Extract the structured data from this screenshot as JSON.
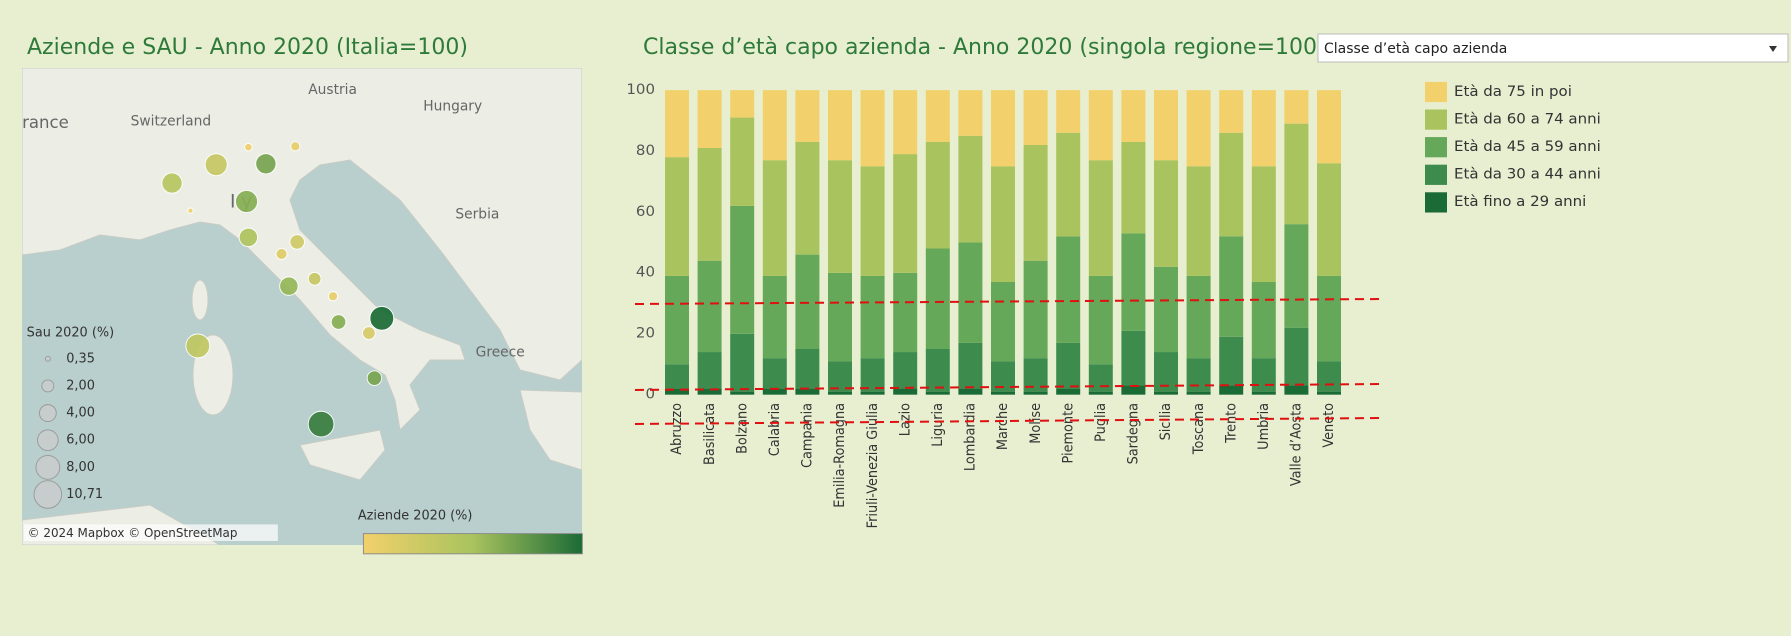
{
  "dropdown": "Classe d’età capo azienda",
  "chart_data": [
    {
      "type": "map",
      "title": "Aziende e SAU - Anno 2020 (Italia=100)",
      "place_labels": [
        "rance",
        "Switzerland",
        "Austria",
        "Hungary",
        "I   y",
        "Serbia",
        "Greece"
      ],
      "attribution": "© 2024 Mapbox © OpenStreetMap",
      "size_legend": {
        "title": "Sau 2020 (%)",
        "values": [
          {
            "value": 0.35,
            "label": "0,35"
          },
          {
            "value": 2,
            "label": "2,00"
          },
          {
            "value": 4,
            "label": "4,00"
          },
          {
            "value": 6,
            "label": "6,00"
          },
          {
            "value": 8,
            "label": "8,00"
          },
          {
            "value": 10.71,
            "label": "10,71"
          }
        ]
      },
      "color_legend": {
        "title": "Aziende 2020 (%)",
        "colors": [
          "#f2d06b",
          "#a9c35e",
          "#1b6b36"
        ]
      },
      "points": {
        "sau": [
          5.8,
          6.9,
          0.8,
          5.8,
          1.2,
          0.4,
          6.9,
          4.8,
          3.0,
          1.7,
          4.8,
          2.3,
          1.2,
          3.0,
          8.0,
          2.3,
          3.0,
          9.3,
          8.0
        ],
        "aziende": [
          4.5,
          3.5,
          1.0,
          7.0,
          1.5,
          0.8,
          6.5,
          5.0,
          3.0,
          2.0,
          6.0,
          3.5,
          1.5,
          6.5,
          10.0,
          2.5,
          7.0,
          9.0,
          4.0
        ]
      }
    },
    {
      "type": "bar",
      "stacked": true,
      "title": "Classe d’età capo azienda - Anno 2020 (singola regione=100)",
      "categories": [
        "Abruzzo",
        "Basilicata",
        "Bolzano",
        "Calabria",
        "Campania",
        "Emilia-Romagna",
        "Friuli-Venezia Giulia",
        "Lazio",
        "Liguria",
        "Lombardia",
        "Marche",
        "Molise",
        "Piemonte",
        "Puglia",
        "Sardegna",
        "Sicilia",
        "Toscana",
        "Trento",
        "Umbria",
        "Valle d’Aosta",
        "Veneto"
      ],
      "series": [
        {
          "name": "Età fino a 29 anni",
          "color": "#1b6b36",
          "values": [
            2,
            2,
            1,
            2,
            2,
            1,
            1,
            2,
            1,
            2,
            1,
            1,
            2,
            1,
            3,
            1,
            1,
            3,
            1,
            3,
            1
          ]
        },
        {
          "name": "Età da 30 a 44 anni",
          "color": "#3d8c4e",
          "values": [
            8,
            12,
            19,
            10,
            13,
            10,
            11,
            12,
            14,
            15,
            10,
            11,
            15,
            9,
            18,
            13,
            11,
            16,
            11,
            19,
            10
          ]
        },
        {
          "name": "Età da 45 a 59 anni",
          "color": "#66a85a",
          "values": [
            29,
            30,
            42,
            27,
            31,
            29,
            27,
            26,
            33,
            33,
            26,
            32,
            35,
            29,
            32,
            28,
            27,
            33,
            25,
            34,
            28
          ]
        },
        {
          "name": "Età da 60 a 74 anni",
          "color": "#a9c35e",
          "values": [
            39,
            37,
            29,
            38,
            37,
            37,
            36,
            39,
            35,
            35,
            38,
            38,
            34,
            38,
            30,
            35,
            36,
            34,
            38,
            33,
            37
          ]
        },
        {
          "name": "Età da 75 in poi",
          "color": "#f2d06b",
          "values": [
            22,
            19,
            9,
            23,
            17,
            23,
            25,
            21,
            17,
            15,
            25,
            18,
            14,
            23,
            17,
            23,
            25,
            14,
            25,
            11,
            24
          ]
        }
      ],
      "ylim": [
        0,
        100
      ],
      "yticks": [
        0,
        20,
        40,
        60,
        80,
        100
      ],
      "grid": false,
      "legend": "right"
    }
  ]
}
